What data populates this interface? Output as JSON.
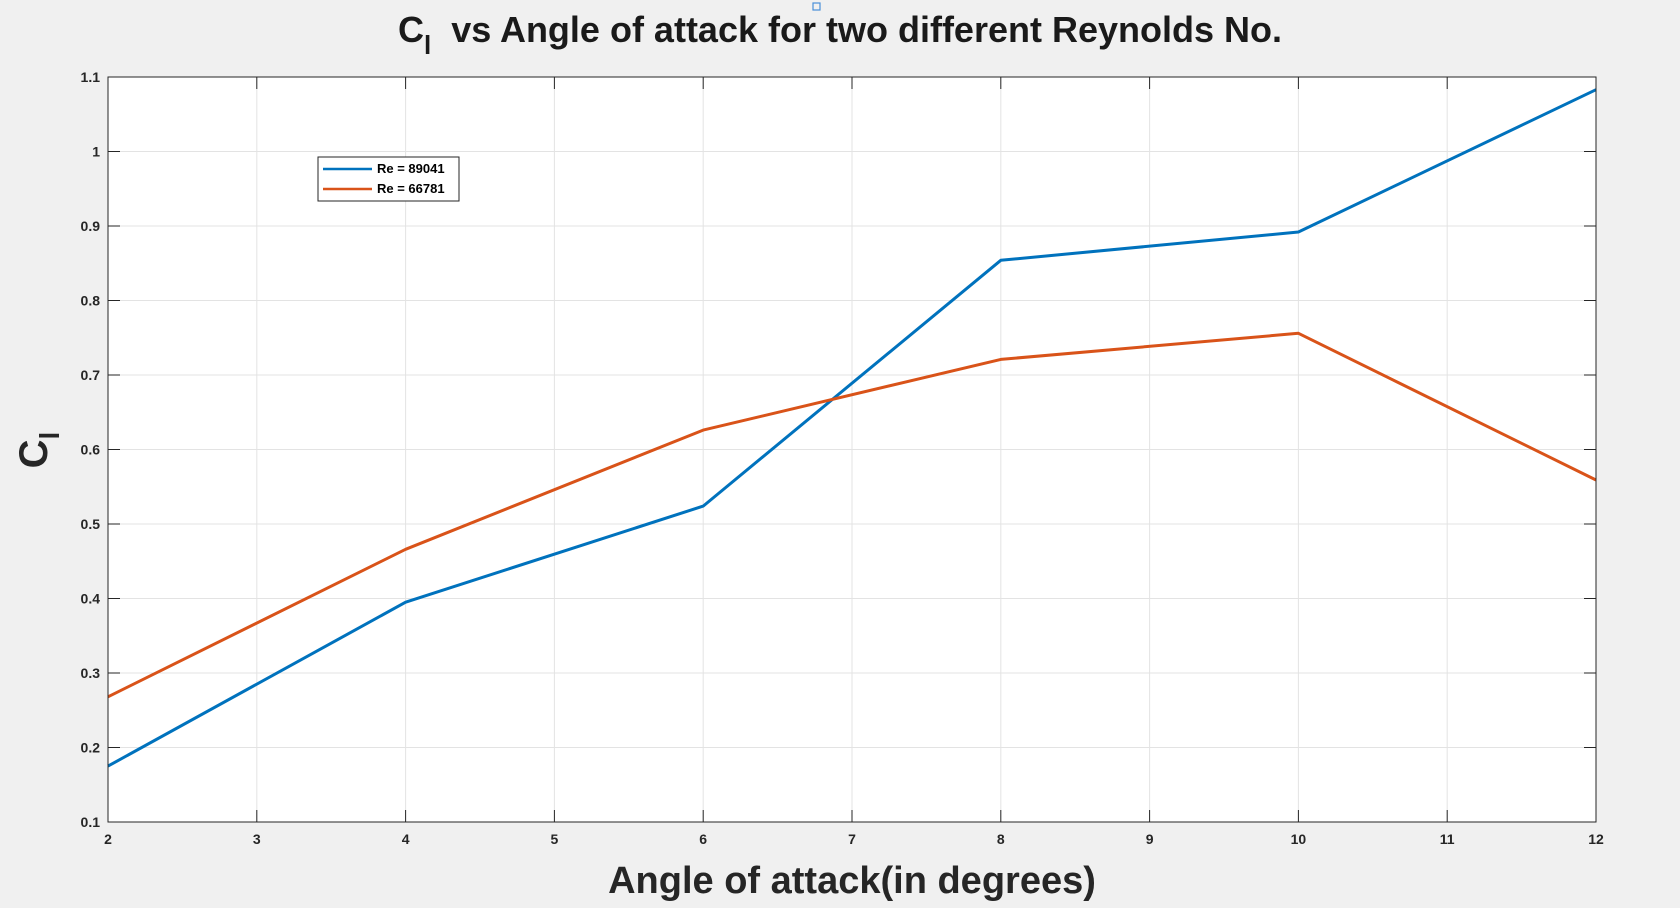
{
  "chart_data": {
    "type": "line",
    "title": {
      "symbol": "C",
      "subscript": "l",
      "rest": "vs Angle of attack for two different Reynolds No."
    },
    "xlabel": "Angle of attack(in degrees)",
    "ylabel": {
      "symbol": "C",
      "subscript": "l"
    },
    "xlim": [
      2,
      12
    ],
    "ylim": [
      0.1,
      1.1
    ],
    "xticks": [
      2,
      3,
      4,
      5,
      6,
      7,
      8,
      9,
      10,
      11,
      12
    ],
    "yticks": [
      0.1,
      0.2,
      0.3,
      0.4,
      0.5,
      0.6,
      0.7,
      0.8,
      0.9,
      1,
      1.1
    ],
    "grid": true,
    "legend_position": "upper-left",
    "x": [
      2,
      4,
      6,
      8,
      10,
      12
    ],
    "series": [
      {
        "name": "Re = 89041",
        "color": "#0072bd",
        "values": [
          0.175,
          0.395,
          0.524,
          0.854,
          0.892,
          1.083
        ]
      },
      {
        "name": "Re = 66781",
        "color": "#d95319",
        "values": [
          0.268,
          0.466,
          0.626,
          0.721,
          0.756,
          0.559
        ]
      }
    ]
  }
}
